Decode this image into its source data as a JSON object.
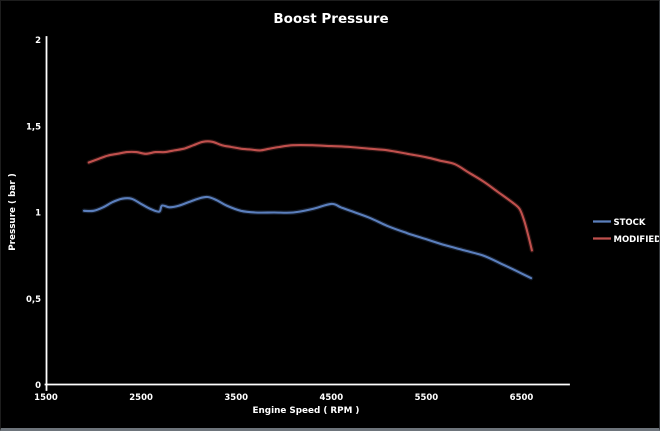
{
  "chart_data": {
    "type": "line",
    "title": "Boost Pressure",
    "xlabel": "Engine Speed ( RPM )",
    "ylabel": "Pressure ( bar )",
    "background": "#000000",
    "text_color": "#ffffff",
    "grid": false,
    "legend_position": "right",
    "xlim": [
      1500,
      7000
    ],
    "ylim": [
      0,
      2
    ],
    "x_ticks": [
      {
        "value": 1500,
        "label": "1500"
      },
      {
        "value": 2500,
        "label": "2500"
      },
      {
        "value": 3500,
        "label": "3500"
      },
      {
        "value": 4500,
        "label": "4500"
      },
      {
        "value": 5500,
        "label": "5500"
      },
      {
        "value": 6500,
        "label": "6500"
      }
    ],
    "y_ticks": [
      {
        "value": 0,
        "label": "0"
      },
      {
        "value": 0.5,
        "label": "0,5"
      },
      {
        "value": 1,
        "label": "1"
      },
      {
        "value": 1.5,
        "label": "1,5"
      },
      {
        "value": 2,
        "label": "2"
      }
    ],
    "series": [
      {
        "name": "STOCK",
        "color": "#5B7FBD",
        "points": [
          [
            1900,
            1.01
          ],
          [
            2000,
            1.01
          ],
          [
            2100,
            1.03
          ],
          [
            2200,
            1.06
          ],
          [
            2300,
            1.08
          ],
          [
            2400,
            1.08
          ],
          [
            2500,
            1.05
          ],
          [
            2600,
            1.02
          ],
          [
            2690,
            1.005
          ],
          [
            2720,
            1.04
          ],
          [
            2800,
            1.03
          ],
          [
            2900,
            1.04
          ],
          [
            3000,
            1.06
          ],
          [
            3100,
            1.08
          ],
          [
            3200,
            1.09
          ],
          [
            3300,
            1.07
          ],
          [
            3400,
            1.04
          ],
          [
            3550,
            1.01
          ],
          [
            3700,
            1.0
          ],
          [
            3900,
            1.0
          ],
          [
            4100,
            1.0
          ],
          [
            4300,
            1.02
          ],
          [
            4500,
            1.05
          ],
          [
            4600,
            1.03
          ],
          [
            4700,
            1.01
          ],
          [
            4900,
            0.97
          ],
          [
            5100,
            0.92
          ],
          [
            5300,
            0.88
          ],
          [
            5500,
            0.845
          ],
          [
            5700,
            0.81
          ],
          [
            5900,
            0.78
          ],
          [
            6100,
            0.75
          ],
          [
            6300,
            0.7
          ],
          [
            6450,
            0.66
          ],
          [
            6600,
            0.62
          ]
        ]
      },
      {
        "name": "MODIFIED",
        "color": "#C0504D",
        "points": [
          [
            1950,
            1.29
          ],
          [
            2050,
            1.31
          ],
          [
            2150,
            1.33
          ],
          [
            2250,
            1.34
          ],
          [
            2350,
            1.35
          ],
          [
            2450,
            1.35
          ],
          [
            2550,
            1.34
          ],
          [
            2650,
            1.35
          ],
          [
            2750,
            1.35
          ],
          [
            2850,
            1.36
          ],
          [
            2950,
            1.37
          ],
          [
            3050,
            1.39
          ],
          [
            3150,
            1.41
          ],
          [
            3250,
            1.41
          ],
          [
            3350,
            1.39
          ],
          [
            3450,
            1.38
          ],
          [
            3550,
            1.37
          ],
          [
            3650,
            1.365
          ],
          [
            3750,
            1.36
          ],
          [
            3850,
            1.37
          ],
          [
            3950,
            1.38
          ],
          [
            4100,
            1.39
          ],
          [
            4300,
            1.39
          ],
          [
            4500,
            1.385
          ],
          [
            4700,
            1.38
          ],
          [
            4900,
            1.37
          ],
          [
            5100,
            1.36
          ],
          [
            5300,
            1.34
          ],
          [
            5500,
            1.32
          ],
          [
            5650,
            1.3
          ],
          [
            5800,
            1.28
          ],
          [
            5950,
            1.23
          ],
          [
            6100,
            1.18
          ],
          [
            6250,
            1.12
          ],
          [
            6400,
            1.06
          ],
          [
            6480,
            1.02
          ],
          [
            6530,
            0.95
          ],
          [
            6570,
            0.87
          ],
          [
            6610,
            0.78
          ]
        ]
      }
    ]
  }
}
